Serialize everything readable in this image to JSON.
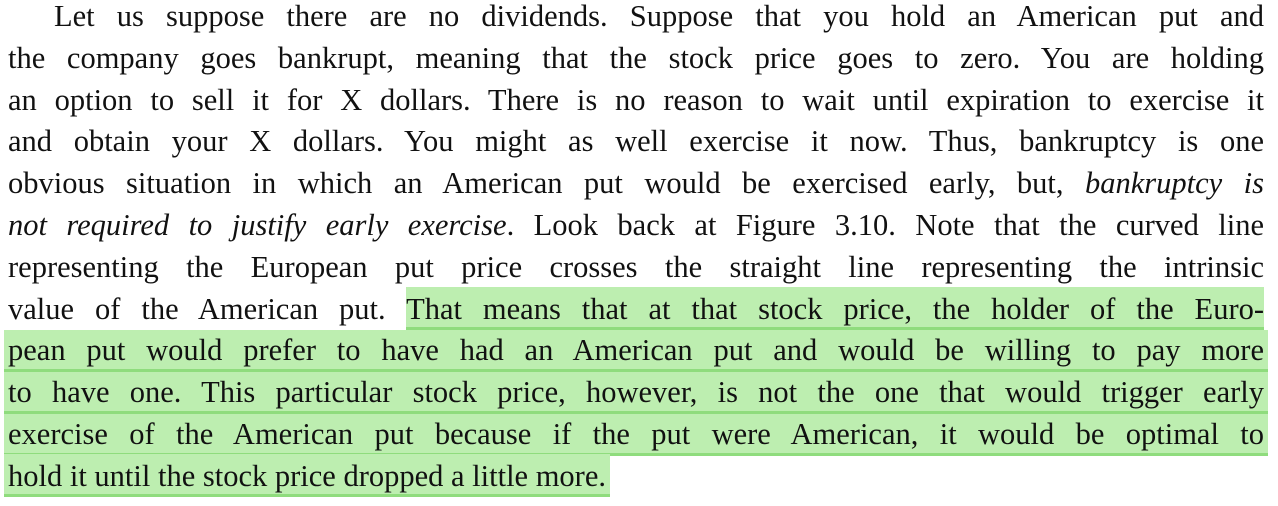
{
  "document": {
    "highlight_color": "#bdeeb0",
    "highlight_underline_color": "#8fdc7d",
    "lines": [
      {
        "segments": [
          {
            "text": "Let us suppose there are no dividends. Suppose that you hold an American put and"
          }
        ]
      },
      {
        "segments": [
          {
            "text": "the company goes bankrupt, meaning that the stock price goes to zero. You are holding"
          }
        ]
      },
      {
        "segments": [
          {
            "text": "an option to sell it for X dollars. There is no reason to wait until expiration to exercise it"
          }
        ]
      },
      {
        "segments": [
          {
            "text": "and obtain your X dollars. You might as well exercise it now. Thus, bankruptcy is one"
          }
        ]
      },
      {
        "segments": [
          {
            "text": "obvious situation in which an American put would be exercised early, but, "
          },
          {
            "text": "bankruptcy is",
            "italic": true
          }
        ]
      },
      {
        "segments": [
          {
            "text": "not required to justify early exercise",
            "italic": true
          },
          {
            "text": ". Look back at Figure 3.10. Note that the curved line"
          }
        ]
      },
      {
        "segments": [
          {
            "text": "representing the European put price crosses the straight line representing the intrinsic"
          }
        ]
      },
      {
        "segments": [
          {
            "text": "value of the American put. "
          },
          {
            "text": "That means that at that stock price, the holder of the Euro-",
            "highlight": true
          }
        ]
      },
      {
        "segments": [
          {
            "text": "pean put would prefer to have had an American put and would be willing to pay more",
            "highlight": true
          }
        ]
      },
      {
        "segments": [
          {
            "text": "to have one. This particular stock price, however, is not the one that would trigger early",
            "highlight": true
          }
        ]
      },
      {
        "segments": [
          {
            "text": "exercise of the American put because if the put were American, it would be optimal to",
            "highlight": true
          }
        ]
      },
      {
        "segments": [
          {
            "text": "hold it until the stock price dropped a little more.",
            "highlight": true
          }
        ]
      }
    ]
  }
}
